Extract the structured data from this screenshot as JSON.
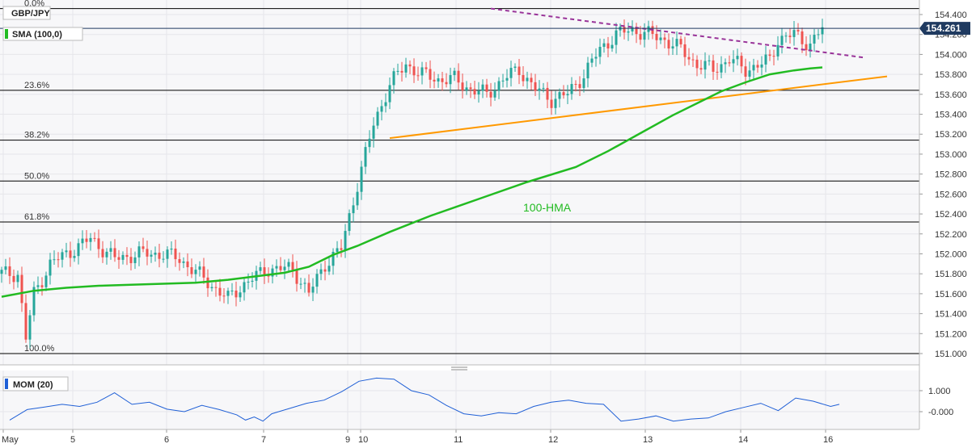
{
  "chart_data": [
    {
      "type": "candlestick",
      "title": "GBP/JPY",
      "indicator_label": "SMA (100,0)",
      "ylim": [
        150.9,
        154.55
      ],
      "y_ticks": [
        "154.400",
        "154.200",
        "154.000",
        "153.800",
        "153.600",
        "153.400",
        "153.200",
        "153.000",
        "152.800",
        "152.600",
        "152.400",
        "152.200",
        "152.000",
        "151.800",
        "151.600",
        "151.400",
        "151.200",
        "151.000"
      ],
      "x_tick_labels": [
        "May",
        "5",
        "6",
        "7",
        "9",
        "10",
        "11",
        "12",
        "13",
        "14",
        "16"
      ],
      "current_price": "154.261",
      "fibonacci_levels": [
        {
          "label": "0.0%",
          "value": 154.46
        },
        {
          "label": "23.6%",
          "value": 153.64
        },
        {
          "label": "38.2%",
          "value": 153.14
        },
        {
          "label": "50.0%",
          "value": 152.73
        },
        {
          "label": "61.8%",
          "value": 152.32
        },
        {
          "label": "100.0%",
          "value": 151.0
        }
      ],
      "series": [
        {
          "name": "100-HMA",
          "color": "#22bb22",
          "points": [
            [
              0,
              151.57
            ],
            [
              8,
              151.63
            ],
            [
              16,
              151.66
            ],
            [
              24,
              151.68
            ],
            [
              32,
              151.69
            ],
            [
              40,
              151.7
            ],
            [
              48,
              151.71
            ],
            [
              56,
              151.74
            ],
            [
              64,
              151.78
            ],
            [
              70,
              151.81
            ],
            [
              76,
              151.87
            ],
            [
              82,
              151.99
            ],
            [
              88,
              152.08
            ],
            [
              96,
              152.22
            ],
            [
              106,
              152.38
            ],
            [
              118,
              152.55
            ],
            [
              130,
              152.72
            ],
            [
              142,
              152.87
            ],
            [
              150,
              153.03
            ],
            [
              158,
              153.21
            ],
            [
              166,
              153.39
            ],
            [
              173,
              153.53
            ],
            [
              178,
              153.63
            ],
            [
              184,
              153.72
            ],
            [
              190,
              153.8
            ],
            [
              196,
              153.84
            ],
            [
              200,
              153.86
            ],
            [
              203,
              153.87
            ]
          ]
        }
      ],
      "trendlines": [
        {
          "name": "resistance",
          "style": "dashed",
          "color": "#993399",
          "start": [
            121,
            154.46
          ],
          "end": [
            213,
            153.97
          ]
        },
        {
          "name": "support",
          "style": "solid",
          "color": "#ff9900",
          "start": [
            96,
            153.16
          ],
          "end": [
            219,
            153.78
          ]
        }
      ],
      "colors": {
        "up": "#26a69a",
        "down": "#ef5350",
        "price_badge": "#1f3a60"
      }
    },
    {
      "type": "line",
      "title": "MOM (20)",
      "ylim": [
        -0.75,
        1.5
      ],
      "y_ticks": [
        "1.000",
        "-0.000"
      ],
      "series": [
        {
          "name": "MOM",
          "color": "#1f5fd6",
          "points": [
            [
              0,
              -0.4
            ],
            [
              4,
              0.1
            ],
            [
              8,
              0.22
            ],
            [
              12,
              0.35
            ],
            [
              16,
              0.25
            ],
            [
              20,
              0.45
            ],
            [
              24,
              0.9
            ],
            [
              28,
              0.35
            ],
            [
              32,
              0.45
            ],
            [
              36,
              0.12
            ],
            [
              40,
              0.0
            ],
            [
              44,
              0.3
            ],
            [
              48,
              0.1
            ],
            [
              52,
              -0.15
            ],
            [
              54,
              -0.4
            ],
            [
              56,
              -0.25
            ],
            [
              58,
              -0.45
            ],
            [
              60,
              -0.1
            ],
            [
              64,
              0.15
            ],
            [
              68,
              0.4
            ],
            [
              72,
              0.55
            ],
            [
              76,
              0.95
            ],
            [
              80,
              1.45
            ],
            [
              84,
              1.6
            ],
            [
              88,
              1.55
            ],
            [
              92,
              1.0
            ],
            [
              96,
              0.8
            ],
            [
              100,
              0.3
            ],
            [
              104,
              -0.1
            ],
            [
              108,
              -0.2
            ],
            [
              112,
              -0.05
            ],
            [
              116,
              -0.1
            ],
            [
              120,
              0.25
            ],
            [
              124,
              0.45
            ],
            [
              128,
              0.55
            ],
            [
              132,
              0.4
            ],
            [
              136,
              0.35
            ],
            [
              140,
              -0.45
            ],
            [
              144,
              -0.35
            ],
            [
              148,
              -0.2
            ],
            [
              152,
              -0.45
            ],
            [
              156,
              -0.35
            ],
            [
              160,
              -0.3
            ],
            [
              164,
              0.0
            ],
            [
              168,
              0.2
            ],
            [
              172,
              0.4
            ],
            [
              176,
              0.05
            ],
            [
              180,
              0.65
            ],
            [
              184,
              0.5
            ],
            [
              188,
              0.25
            ],
            [
              190,
              0.35
            ]
          ]
        }
      ]
    }
  ]
}
